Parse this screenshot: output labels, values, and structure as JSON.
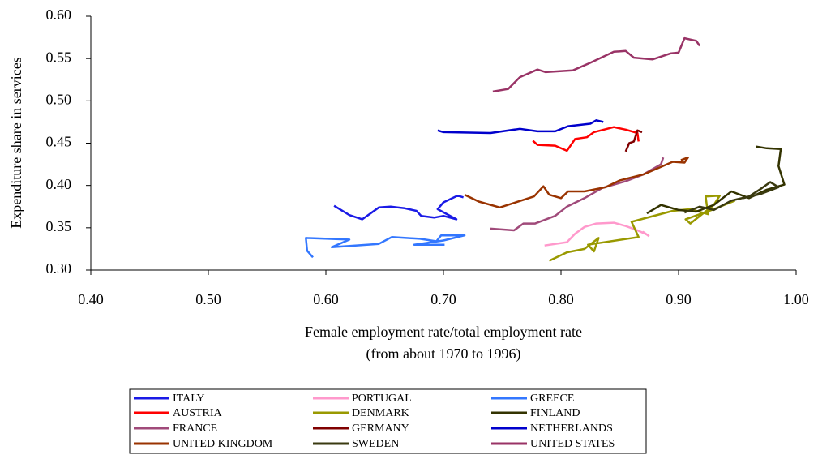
{
  "chart_data": {
    "type": "line",
    "ylabel": "Expenditure share in services",
    "xlabel": [
      "Female employment rate/total employment rate",
      "(from about 1970 to 1996)"
    ],
    "xlim": [
      0.4,
      1.0
    ],
    "xticks": [
      {
        "value": 0.4,
        "label": "0.40"
      },
      {
        "value": 0.5,
        "label": "0.50"
      },
      {
        "value": 0.6,
        "label": "0.60"
      },
      {
        "value": 0.7,
        "label": "0.70"
      },
      {
        "value": 0.8,
        "label": "0.80"
      },
      {
        "value": 0.9,
        "label": "0.90"
      },
      {
        "value": 1.0,
        "label": "1.00"
      }
    ],
    "ylim": [
      0.3,
      0.6
    ],
    "yticks": [
      {
        "value": 0.3,
        "label": "0.30"
      },
      {
        "value": 0.35,
        "label": "0.35"
      },
      {
        "value": 0.4,
        "label": "0.40"
      },
      {
        "value": 0.45,
        "label": "0.45"
      },
      {
        "value": 0.5,
        "label": "0.50"
      },
      {
        "value": 0.55,
        "label": "0.55"
      },
      {
        "value": 0.6,
        "label": "0.60"
      }
    ],
    "series": [
      {
        "name": "ITALY",
        "color": "#1a1ae6",
        "x": [
          0.607,
          0.62,
          0.631,
          0.645,
          0.655,
          0.667,
          0.677,
          0.681,
          0.692,
          0.7,
          0.711,
          0.695,
          0.7,
          0.712,
          0.717
        ],
        "values": [
          0.376,
          0.365,
          0.36,
          0.374,
          0.375,
          0.373,
          0.37,
          0.364,
          0.362,
          0.364,
          0.36,
          0.372,
          0.38,
          0.388,
          0.386
        ]
      },
      {
        "name": "PORTUGAL",
        "color": "#ff99cc",
        "x": [
          0.786,
          0.805,
          0.812,
          0.82,
          0.83,
          0.845,
          0.855,
          0.865,
          0.873,
          0.87,
          0.875
        ],
        "values": [
          0.329,
          0.333,
          0.343,
          0.351,
          0.355,
          0.356,
          0.352,
          0.347,
          0.342,
          0.345,
          0.34
        ]
      },
      {
        "name": "GREECE",
        "color": "#3377ff",
        "x": [
          0.589,
          0.584,
          0.583,
          0.62,
          0.605,
          0.645,
          0.656,
          0.68,
          0.694,
          0.698,
          0.718,
          0.7,
          0.675,
          0.701
        ],
        "values": [
          0.315,
          0.323,
          0.338,
          0.336,
          0.327,
          0.331,
          0.339,
          0.337,
          0.334,
          0.341,
          0.341,
          0.335,
          0.33,
          0.33
        ]
      },
      {
        "name": "AUSTRIA",
        "color": "#ff0000",
        "x": [
          0.776,
          0.78,
          0.795,
          0.805,
          0.812,
          0.822,
          0.828,
          0.845,
          0.855,
          0.865,
          0.866
        ],
        "values": [
          0.453,
          0.448,
          0.447,
          0.441,
          0.455,
          0.457,
          0.463,
          0.469,
          0.466,
          0.462,
          0.452
        ]
      },
      {
        "name": "DENMARK",
        "color": "#999900",
        "x": [
          0.79,
          0.805,
          0.82,
          0.832,
          0.828,
          0.823,
          0.866,
          0.86,
          0.895,
          0.91,
          0.925,
          0.923,
          0.935,
          0.93,
          0.91,
          0.906,
          0.93,
          0.948
        ],
        "values": [
          0.311,
          0.321,
          0.325,
          0.338,
          0.322,
          0.33,
          0.339,
          0.357,
          0.37,
          0.372,
          0.366,
          0.387,
          0.388,
          0.377,
          0.355,
          0.36,
          0.372,
          0.382
        ]
      },
      {
        "name": "FINLAND",
        "color": "#333300",
        "x": [
          0.873,
          0.885,
          0.9,
          0.915,
          0.93,
          0.945,
          0.96,
          0.975,
          0.99,
          0.985,
          0.987,
          0.975,
          0.966
        ],
        "values": [
          0.367,
          0.377,
          0.371,
          0.369,
          0.377,
          0.393,
          0.385,
          0.395,
          0.401,
          0.423,
          0.443,
          0.444,
          0.446
        ]
      },
      {
        "name": "FRANCE",
        "color": "#a04a7a",
        "x": [
          0.74,
          0.76,
          0.768,
          0.778,
          0.795,
          0.805,
          0.82,
          0.835,
          0.855,
          0.87,
          0.885,
          0.887
        ],
        "values": [
          0.349,
          0.347,
          0.355,
          0.355,
          0.364,
          0.375,
          0.385,
          0.397,
          0.405,
          0.413,
          0.425,
          0.433
        ]
      },
      {
        "name": "GERMANY",
        "color": "#800000",
        "x": [
          0.855,
          0.858,
          0.862,
          0.865,
          0.869
        ],
        "values": [
          0.44,
          0.45,
          0.452,
          0.465,
          0.463
        ]
      },
      {
        "name": "NETHERLANDS",
        "color": "#0000cc",
        "x": [
          0.695,
          0.7,
          0.74,
          0.765,
          0.78,
          0.795,
          0.806,
          0.825,
          0.83,
          0.836
        ],
        "values": [
          0.465,
          0.463,
          0.462,
          0.467,
          0.464,
          0.464,
          0.47,
          0.473,
          0.477,
          0.475
        ]
      },
      {
        "name": "UNITED KINGDOM",
        "color": "#993300",
        "x": [
          0.718,
          0.73,
          0.748,
          0.768,
          0.777,
          0.785,
          0.79,
          0.8,
          0.806,
          0.82,
          0.838,
          0.85,
          0.87,
          0.895,
          0.905,
          0.908,
          0.902
        ],
        "values": [
          0.389,
          0.381,
          0.374,
          0.383,
          0.387,
          0.399,
          0.389,
          0.385,
          0.393,
          0.393,
          0.398,
          0.406,
          0.413,
          0.428,
          0.427,
          0.433,
          0.43
        ]
      },
      {
        "name": "SWEDEN",
        "color": "#3a3a10",
        "x": [
          0.905,
          0.918,
          0.93,
          0.945,
          0.96,
          0.97,
          0.978,
          0.985,
          0.97,
          0.955
        ],
        "values": [
          0.368,
          0.375,
          0.371,
          0.382,
          0.387,
          0.396,
          0.404,
          0.398,
          0.39,
          0.385
        ]
      },
      {
        "name": "UNITED STATES",
        "color": "#993366",
        "x": [
          0.742,
          0.755,
          0.765,
          0.78,
          0.787,
          0.81,
          0.825,
          0.845,
          0.855,
          0.862,
          0.878,
          0.893,
          0.9,
          0.905,
          0.915,
          0.918
        ],
        "values": [
          0.511,
          0.514,
          0.528,
          0.537,
          0.534,
          0.536,
          0.545,
          0.558,
          0.559,
          0.551,
          0.549,
          0.556,
          0.557,
          0.574,
          0.571,
          0.565
        ]
      }
    ]
  }
}
